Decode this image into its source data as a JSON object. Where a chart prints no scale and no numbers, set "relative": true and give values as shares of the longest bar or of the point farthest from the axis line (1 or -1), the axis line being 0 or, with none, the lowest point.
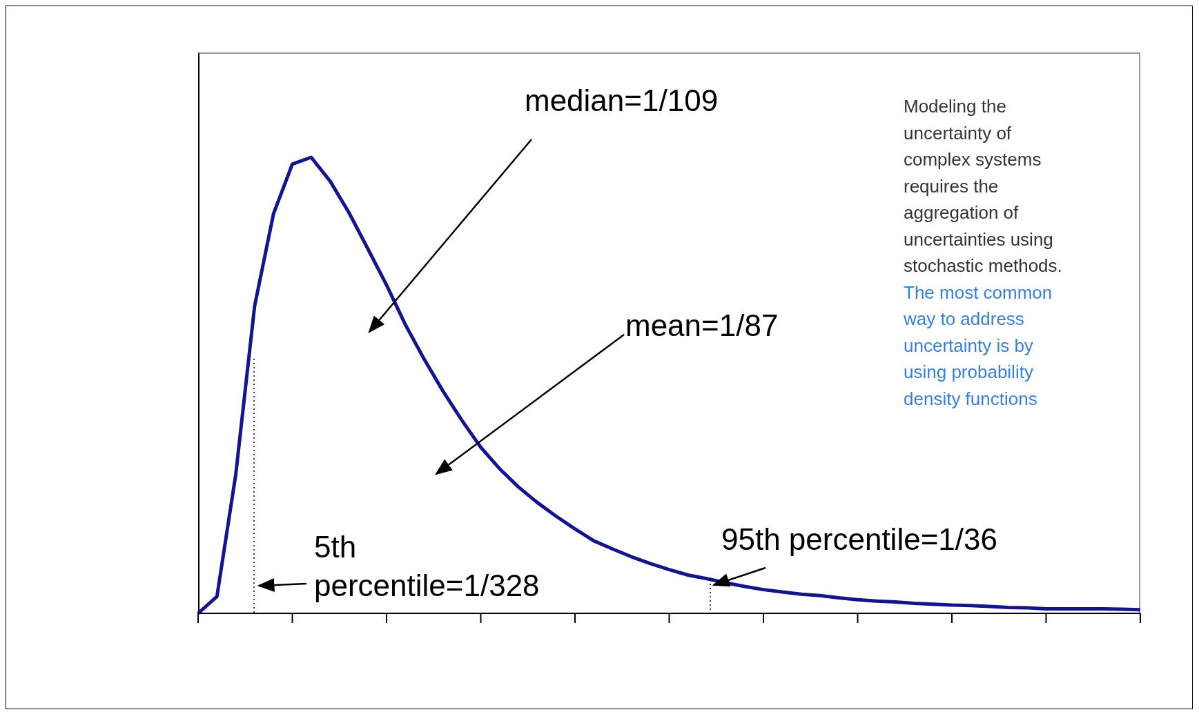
{
  "chart_data": {
    "type": "line",
    "relative": true,
    "marker": "none",
    "line_style": "solid",
    "categories": [
      null,
      null,
      null,
      null,
      null,
      null,
      null,
      null,
      null,
      null,
      null,
      null,
      null,
      null,
      null,
      null,
      null,
      null,
      null,
      null,
      null,
      null,
      null,
      null,
      null,
      null,
      null,
      null,
      null,
      null,
      null,
      null,
      null,
      null,
      null,
      null,
      null,
      null,
      null,
      null,
      null,
      null,
      null,
      null,
      null,
      null,
      null,
      null,
      null,
      null,
      null
    ],
    "series": [
      {
        "color": "#14148c",
        "values": [
          0,
          0.037,
          0.305,
          0.674,
          0.876,
          0.985,
          1,
          0.948,
          0.879,
          0.8,
          0.72,
          0.633,
          0.557,
          0.487,
          0.423,
          0.364,
          0.317,
          0.277,
          0.243,
          0.213,
          0.185,
          0.159,
          0.141,
          0.124,
          0.109,
          0.096,
          0.084,
          0.076,
          0.067,
          0.059,
          0.052,
          0.047,
          0.042,
          0.039,
          0.034,
          0.03,
          0.027,
          0.025,
          0.022,
          0.02,
          0.018,
          0.017,
          0.015,
          0.013,
          0.012,
          0.01,
          0.01,
          0.01,
          0.01,
          0.009,
          0.008
        ]
      }
    ],
    "annotations": [
      "median=1/109",
      "mean=1/87",
      "5th percentile=1/328",
      "95th percentile=1/36",
      "Modeling the uncertainty of complex systems requires the aggregation of uncertainties using stochastic methods.",
      "The most common way to address uncertainty is by using probability density functions"
    ]
  }
}
